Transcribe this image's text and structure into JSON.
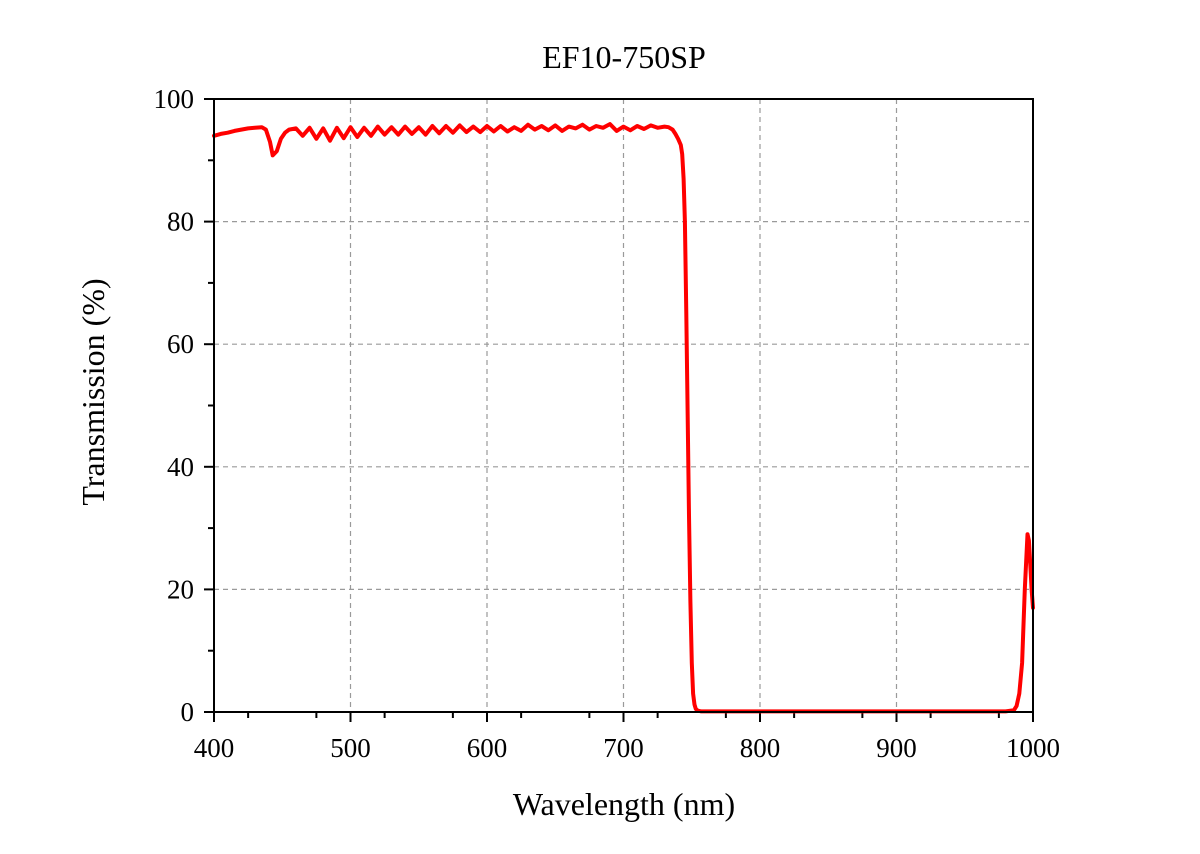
{
  "chart_data": {
    "type": "line",
    "title": "EF10-750SP",
    "xlabel": "Wavelength (nm)",
    "ylabel": "Transmission (%)",
    "xlim": [
      400,
      1000
    ],
    "ylim": [
      0,
      100
    ],
    "x_ticks": [
      "400",
      "500",
      "600",
      "700",
      "800",
      "900",
      "1000"
    ],
    "y_ticks": [
      "0",
      "20",
      "40",
      "60",
      "80",
      "100"
    ],
    "grid": true,
    "series_color": "#ff0000",
    "series": [
      {
        "x": [
          400,
          405,
          410,
          415,
          420,
          425,
          430,
          435,
          438,
          441,
          443,
          446,
          449,
          452,
          455,
          460,
          465,
          470,
          475,
          480,
          485,
          490,
          495,
          500,
          505,
          510,
          515,
          520,
          525,
          530,
          535,
          540,
          545,
          550,
          555,
          560,
          565,
          570,
          575,
          580,
          585,
          590,
          595,
          600,
          605,
          610,
          615,
          620,
          625,
          630,
          635,
          640,
          645,
          650,
          655,
          660,
          665,
          670,
          675,
          680,
          685,
          690,
          695,
          700,
          705,
          710,
          715,
          720,
          725,
          730,
          733,
          736,
          738,
          740,
          742,
          743,
          744,
          745,
          746,
          747,
          748,
          749,
          750,
          751,
          752,
          753,
          754,
          755,
          757,
          760,
          770,
          800,
          850,
          900,
          950,
          980,
          986,
          988,
          990,
          992,
          994,
          996,
          997,
          998,
          999,
          1000
        ],
        "y": [
          94,
          94.3,
          94.5,
          94.8,
          95,
          95.2,
          95.3,
          95.4,
          95,
          93,
          90.8,
          91.5,
          93.5,
          94.5,
          95,
          95.2,
          94,
          95.3,
          93.5,
          95.2,
          93.2,
          95.3,
          93.6,
          95.4,
          93.8,
          95.3,
          94,
          95.5,
          94.2,
          95.4,
          94.2,
          95.5,
          94.3,
          95.4,
          94.2,
          95.6,
          94.4,
          95.6,
          94.5,
          95.7,
          94.6,
          95.5,
          94.6,
          95.6,
          94.7,
          95.6,
          94.7,
          95.4,
          94.8,
          95.8,
          95,
          95.6,
          94.9,
          95.7,
          94.8,
          95.5,
          95.2,
          95.8,
          95,
          95.6,
          95.3,
          95.9,
          94.8,
          95.5,
          94.9,
          95.6,
          95.1,
          95.7,
          95.3,
          95.5,
          95.4,
          95.0,
          94.3,
          93.5,
          92.5,
          91,
          87,
          80,
          65,
          48,
          32,
          18,
          8,
          3,
          1.2,
          0.5,
          0.3,
          0.2,
          0.1,
          0.1,
          0.1,
          0.1,
          0.1,
          0.1,
          0.1,
          0.1,
          0.3,
          1,
          3,
          8,
          20,
          29,
          28,
          24,
          20,
          17
        ]
      }
    ]
  }
}
